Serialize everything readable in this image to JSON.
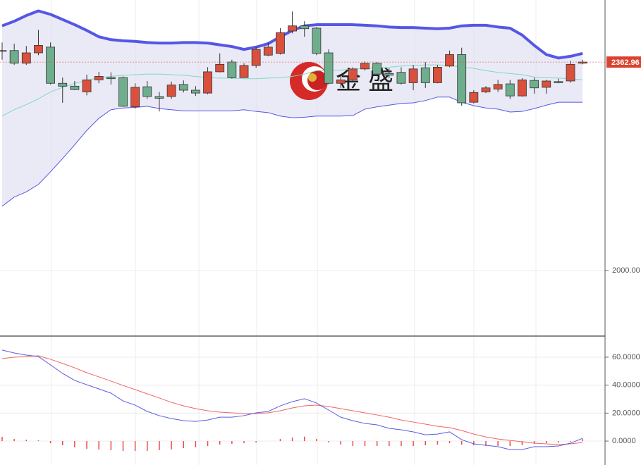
{
  "chart_data": [
    {
      "type": "candlestick",
      "watermark": "金 盛",
      "ylim": [
        1886,
        2471
      ],
      "yticks": [
        {
          "value": 2000,
          "label": "2000.00"
        }
      ],
      "grid": true,
      "last_price": 2362.96,
      "last_price_color": "#d9432f",
      "up_color": "#d9503c",
      "down_color": "#6fae8c",
      "open": [
        2383,
        2383,
        2361,
        2379,
        2389,
        2326,
        2321,
        2311,
        2332,
        2336,
        2336,
        2285,
        2320,
        2303,
        2303,
        2324,
        2314,
        2309,
        2346,
        2363,
        2336,
        2357,
        2375,
        2378,
        2417,
        2426,
        2422,
        2379,
        2326,
        2332,
        2351,
        2361,
        2343,
        2345,
        2327,
        2353,
        2327,
        2356,
        2376,
        2293,
        2311,
        2316,
        2325,
        2304,
        2331,
        2319,
        2329,
        2330,
        2361
      ],
      "high": [
        2397,
        2395,
        2391,
        2419,
        2397,
        2336,
        2330,
        2341,
        2346,
        2345,
        2338,
        2326,
        2330,
        2311,
        2329,
        2331,
        2321,
        2354,
        2378,
        2367,
        2361,
        2390,
        2397,
        2422,
        2451,
        2434,
        2424,
        2385,
        2338,
        2354,
        2364,
        2363,
        2352,
        2354,
        2358,
        2363,
        2358,
        2383,
        2388,
        2314,
        2321,
        2332,
        2332,
        2335,
        2336,
        2332,
        2334,
        2365,
        2367
      ],
      "low": [
        2367,
        2358,
        2358,
        2375,
        2324,
        2292,
        2314,
        2305,
        2326,
        2324,
        2285,
        2282,
        2299,
        2277,
        2299,
        2310,
        2304,
        2307,
        2345,
        2334,
        2335,
        2353,
        2373,
        2376,
        2413,
        2407,
        2375,
        2324,
        2318,
        2330,
        2348,
        2338,
        2335,
        2324,
        2314,
        2318,
        2326,
        2354,
        2287,
        2291,
        2309,
        2311,
        2299,
        2303,
        2308,
        2308,
        2326,
        2327,
        2359
      ],
      "close": [
        2383,
        2361,
        2379,
        2392,
        2326,
        2321,
        2315,
        2332,
        2338,
        2334,
        2286,
        2319,
        2303,
        2300,
        2323,
        2314,
        2309,
        2346,
        2359,
        2336,
        2357,
        2385,
        2389,
        2414,
        2426,
        2421,
        2378,
        2326,
        2332,
        2351,
        2361,
        2342,
        2340,
        2326,
        2351,
        2327,
        2354,
        2376,
        2292,
        2310,
        2318,
        2324,
        2304,
        2332,
        2318,
        2330,
        2327,
        2359,
        2362.96
      ],
      "bands": [
        {
          "color": "#5656e6",
          "width": 4,
          "values": [
            2426,
            2434,
            2444,
            2452,
            2446,
            2437,
            2428,
            2418,
            2407,
            2402,
            2400,
            2399,
            2397,
            2396,
            2396,
            2397,
            2397,
            2396,
            2393,
            2390,
            2385,
            2389,
            2395,
            2407,
            2418,
            2426,
            2428,
            2428,
            2428,
            2428,
            2427,
            2426,
            2424,
            2423,
            2423,
            2422,
            2421,
            2422,
            2426,
            2427,
            2427,
            2424,
            2422,
            2410,
            2392,
            2376,
            2370,
            2373,
            2378
          ]
        },
        {
          "color": "#7fd8c2",
          "width": 1,
          "values": [
            2269,
            2280,
            2289,
            2299,
            2311,
            2319,
            2326,
            2331,
            2336,
            2338,
            2340,
            2341,
            2342,
            2342,
            2341,
            2340,
            2338,
            2336,
            2335,
            2335,
            2334,
            2334,
            2335,
            2336,
            2338,
            2342,
            2348,
            2349,
            2349,
            2351,
            2352,
            2353,
            2354,
            2356,
            2357,
            2358,
            2358,
            2357,
            2354,
            2352,
            2348,
            2345,
            2343,
            2341,
            2337,
            2336,
            2335,
            2334,
            2332
          ]
        },
        {
          "color": "#5656e6",
          "width": 1,
          "values": [
            2112,
            2128,
            2137,
            2150,
            2172,
            2195,
            2219,
            2244,
            2265,
            2280,
            2283,
            2284,
            2286,
            2282,
            2280,
            2278,
            2278,
            2278,
            2278,
            2278,
            2280,
            2277,
            2275,
            2269,
            2266,
            2267,
            2269,
            2269,
            2269,
            2270,
            2281,
            2285,
            2288,
            2291,
            2292,
            2296,
            2302,
            2302,
            2293,
            2287,
            2283,
            2281,
            2276,
            2277,
            2282,
            2288,
            2293,
            2293,
            2293
          ]
        }
      ],
      "band_fill": "#dcdcf0"
    },
    {
      "type": "line",
      "ylim": [
        -17.1,
        75.1
      ],
      "yticks": [
        {
          "value": 60,
          "label": "60.0000"
        },
        {
          "value": 40,
          "label": "40.0000"
        },
        {
          "value": 20,
          "label": "20.0000"
        },
        {
          "value": 0,
          "label": "0.0000"
        }
      ],
      "grid": true,
      "series": [
        {
          "color": "#f04848",
          "mark": "bar",
          "values": [
            3,
            1.5,
            1,
            0.5,
            -1.5,
            -3,
            -4.5,
            -5.5,
            -6,
            -6.5,
            -7,
            -7,
            -7,
            -6.5,
            -6,
            -5,
            -4.5,
            -3.5,
            -2.5,
            -2,
            -1.5,
            -1,
            0,
            1.5,
            2.5,
            3.2,
            1.5,
            -1,
            -2.5,
            -3.5,
            -3.5,
            -3.5,
            -3.5,
            -3.5,
            -3.5,
            -3,
            -2.5,
            -1.5,
            -2.5,
            -3,
            -3.5,
            -3.5,
            -3.5,
            -3,
            -2,
            -1.5,
            -1,
            -0.5,
            1.5
          ]
        },
        {
          "color": "#f06464",
          "mark": "line",
          "values": [
            59.0,
            60.0,
            60.5,
            61.0,
            58.5,
            55.5,
            52.4,
            48.9,
            45.9,
            42.9,
            39.8,
            36.8,
            33.8,
            30.8,
            27.7,
            25.2,
            23.2,
            21.7,
            20.7,
            20.2,
            19.7,
            19.7,
            20.2,
            21.7,
            23.7,
            25.2,
            25.7,
            24.7,
            23.2,
            21.7,
            20.2,
            18.7,
            17.1,
            15.1,
            13.6,
            12.1,
            10.6,
            9.6,
            7.6,
            5.0,
            3.0,
            1.5,
            0.5,
            -0.5,
            -1.5,
            -2.0,
            -2.5,
            -2.0,
            -1.0
          ]
        },
        {
          "color": "#5a5ae2",
          "mark": "line",
          "values": [
            65.1,
            63.0,
            61.5,
            60.5,
            54.5,
            48.4,
            43.4,
            40.3,
            37.3,
            34.3,
            28.7,
            25.7,
            21.2,
            18.2,
            16.1,
            14.6,
            14.1,
            15.1,
            17.1,
            17.1,
            18.2,
            20.2,
            21.2,
            25.2,
            28.2,
            30.3,
            27.2,
            22.2,
            17.1,
            14.6,
            12.6,
            11.6,
            9.1,
            8.1,
            6.6,
            4.5,
            5.0,
            6.6,
            1.0,
            -2.0,
            -3.0,
            -4.0,
            -6.1,
            -6.1,
            -4.0,
            -4.0,
            -3.5,
            -1.5,
            2.0
          ]
        }
      ]
    }
  ]
}
